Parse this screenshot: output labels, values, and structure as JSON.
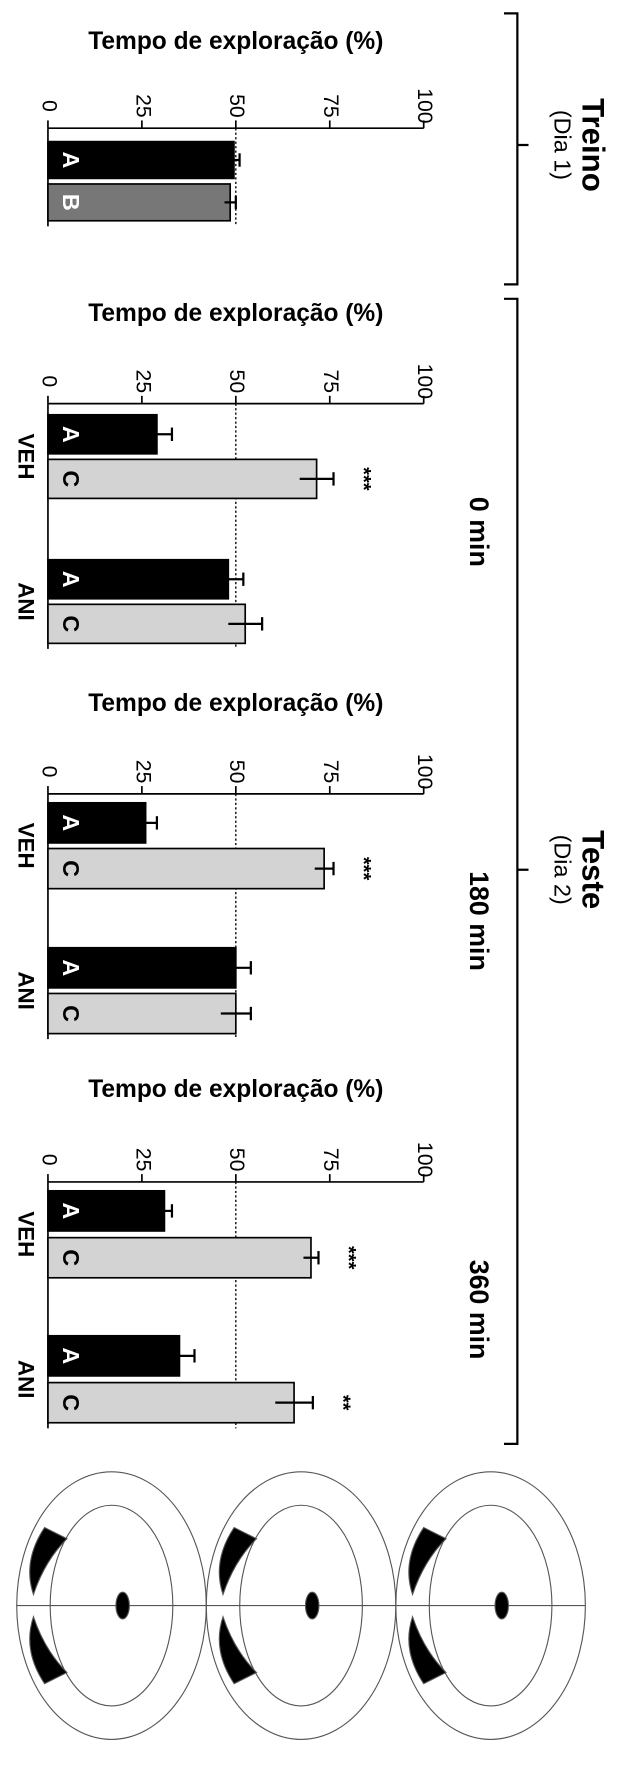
{
  "groups": [
    {
      "label": "Treino",
      "sublabel": "(Dia 1)"
    },
    {
      "label": "Teste",
      "sublabel": "(Dia 2)"
    }
  ],
  "chart_data": [
    {
      "type": "bar",
      "title": "Tempo de exploração (%)",
      "categories": [
        null
      ],
      "series": [
        {
          "name": "A",
          "color": "#000000",
          "values": [
            49.5
          ],
          "errors": [
            1.5
          ]
        },
        {
          "name": "B",
          "color": "#777777",
          "values": [
            48.5
          ],
          "errors": [
            1.5
          ]
        }
      ],
      "xlim": [
        0,
        100
      ],
      "xticks": [
        0,
        25,
        50,
        75,
        100
      ],
      "reference_line": 50
    },
    {
      "type": "bar",
      "title": "Tempo de exploração (%)",
      "subtitle": "0 min",
      "categories": [
        "VEH",
        "ANI"
      ],
      "series": [
        {
          "name": "A",
          "color": "#000000",
          "values": [
            29,
            48
          ],
          "errors": [
            4,
            4
          ]
        },
        {
          "name": "C",
          "color": "#d3d3d3",
          "values": [
            71.5,
            52.5
          ],
          "errors": [
            4.5,
            4.5
          ],
          "significance": [
            "***",
            null
          ]
        }
      ],
      "xlim": [
        0,
        100
      ],
      "xticks": [
        0,
        25,
        50,
        75,
        100
      ],
      "reference_line": 50
    },
    {
      "type": "bar",
      "title": "Tempo de exploração (%)",
      "subtitle": "180 min",
      "categories": [
        "VEH",
        "ANI"
      ],
      "series": [
        {
          "name": "A",
          "color": "#000000",
          "values": [
            26,
            50
          ],
          "errors": [
            3,
            4
          ]
        },
        {
          "name": "C",
          "color": "#d3d3d3",
          "values": [
            73.5,
            50
          ],
          "errors": [
            2.5,
            4
          ],
          "significance": [
            "***",
            null
          ]
        }
      ],
      "xlim": [
        0,
        100
      ],
      "xticks": [
        0,
        25,
        50,
        75,
        100
      ],
      "reference_line": 50
    },
    {
      "type": "bar",
      "title": "Tempo de exploração (%)",
      "subtitle": "360 min",
      "categories": [
        "VEH",
        "ANI"
      ],
      "series": [
        {
          "name": "A",
          "color": "#000000",
          "values": [
            31,
            35
          ],
          "errors": [
            2,
            4
          ]
        },
        {
          "name": "C",
          "color": "#d3d3d3",
          "values": [
            70,
            65.5
          ],
          "errors": [
            2,
            5
          ],
          "significance": [
            "***",
            "**"
          ]
        }
      ],
      "xlim": [
        0,
        100
      ],
      "xticks": [
        0,
        25,
        50,
        75,
        100
      ],
      "reference_line": 50
    }
  ]
}
